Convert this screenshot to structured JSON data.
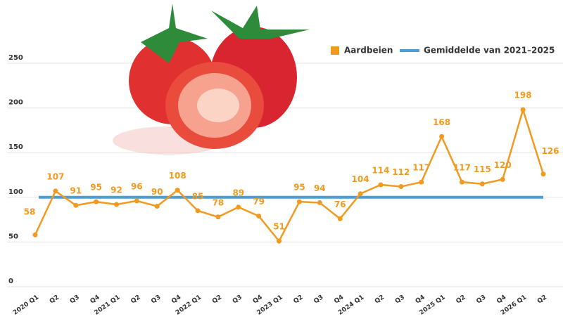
{
  "chart_data": {
    "type": "line",
    "categories": [
      "2020 Q1",
      "Q2",
      "Q3",
      "Q4",
      "2021 Q1",
      "Q2",
      "Q3",
      "Q4",
      "2022 Q1",
      "Q2",
      "Q3",
      "Q4",
      "2023 Q1",
      "Q2",
      "Q3",
      "Q4",
      "2024 Q1",
      "Q2",
      "Q3",
      "Q4",
      "2025 Q1",
      "Q2",
      "Q3",
      "Q4",
      "2026 Q1",
      "Q2"
    ],
    "series": [
      {
        "name": "Aardbeien",
        "color": "#f29a1f",
        "values": [
          58,
          107,
          91,
          95,
          92,
          96,
          90,
          108,
          85,
          78,
          89,
          79,
          51,
          95,
          94,
          76,
          104,
          114,
          112,
          117,
          168,
          117,
          115,
          120,
          198,
          126
        ]
      }
    ],
    "reference": {
      "name": "Gemiddelde van 2021–2025",
      "color": "#4a9fd4",
      "value": 100
    },
    "ylim": [
      0,
      250
    ],
    "yticks": [
      0,
      50,
      100,
      150,
      200,
      250
    ],
    "grid": true,
    "legend": "top-right"
  }
}
